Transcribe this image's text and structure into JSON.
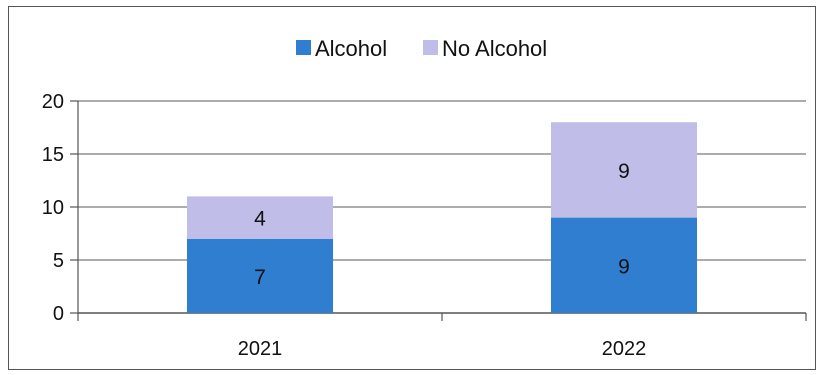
{
  "chart_data": {
    "type": "bar",
    "stacked": true,
    "categories": [
      "2021",
      "2022"
    ],
    "series": [
      {
        "name": "Alcohol",
        "values": [
          7,
          9
        ],
        "color": "#2f7ed0"
      },
      {
        "name": "No Alcohol",
        "values": [
          4,
          9
        ],
        "color": "#c0bde8"
      }
    ],
    "ylim": [
      0,
      20
    ],
    "yticks": [
      "0",
      "5",
      "10",
      "15",
      "20"
    ],
    "grid": true,
    "legend_position": "top"
  }
}
